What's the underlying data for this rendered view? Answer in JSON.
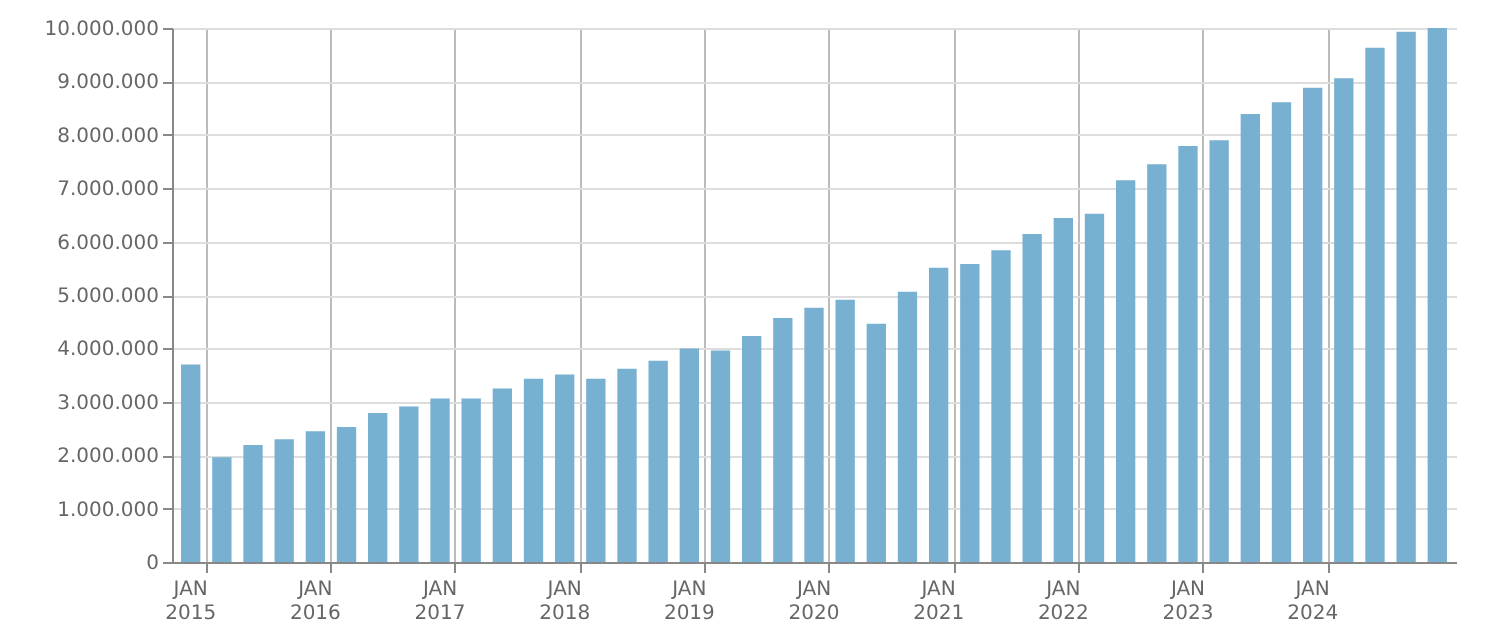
{
  "chart_data": {
    "type": "bar",
    "categories": [
      "JAN\n2015",
      null,
      null,
      null,
      "JAN\n2016",
      null,
      null,
      null,
      "JAN\n2017",
      null,
      null,
      null,
      "JAN\n2018",
      null,
      null,
      null,
      "JAN\n2019",
      null,
      null,
      null,
      "JAN\n2020",
      null,
      null,
      null,
      "JAN\n2021",
      null,
      null,
      null,
      "JAN\n2022",
      null,
      null,
      null,
      "JAN\n2023",
      null,
      null,
      null,
      "JAN\n2024",
      null,
      null,
      null,
      null
    ],
    "values": [
      3700000,
      1960000,
      2190000,
      2300000,
      2450000,
      2530000,
      2790000,
      2910000,
      3060000,
      3060000,
      3250000,
      3430000,
      3510000,
      3430000,
      3620000,
      3770000,
      4000000,
      3960000,
      4230000,
      4570000,
      4760000,
      4910000,
      4460000,
      5060000,
      5510000,
      5580000,
      5840000,
      6140000,
      6440000,
      6520000,
      7150000,
      7450000,
      7790000,
      7900000,
      8390000,
      8610000,
      8880000,
      9060000,
      9630000,
      9930000,
      10000000
    ],
    "color": "#77b0d1",
    "ylim": [
      0,
      10000000
    ],
    "yticks": [
      0,
      {
        "value": 1000000,
        "label": "1.000.000"
      },
      {
        "value": 2000000,
        "label": "2.000.000"
      },
      {
        "value": 3000000,
        "label": "3.000.000"
      },
      {
        "value": 4000000,
        "label": "4.000.000"
      },
      {
        "value": 5000000,
        "label": "5.000.000"
      },
      {
        "value": 6000000,
        "label": "6.000.000"
      },
      {
        "value": 7000000,
        "label": "7.000.000"
      },
      {
        "value": 8000000,
        "label": "8.000.000"
      },
      {
        "value": 9000000,
        "label": "9.000.000"
      },
      {
        "value": 10000000,
        "label": "10.000.000"
      }
    ],
    "grid": true
  }
}
